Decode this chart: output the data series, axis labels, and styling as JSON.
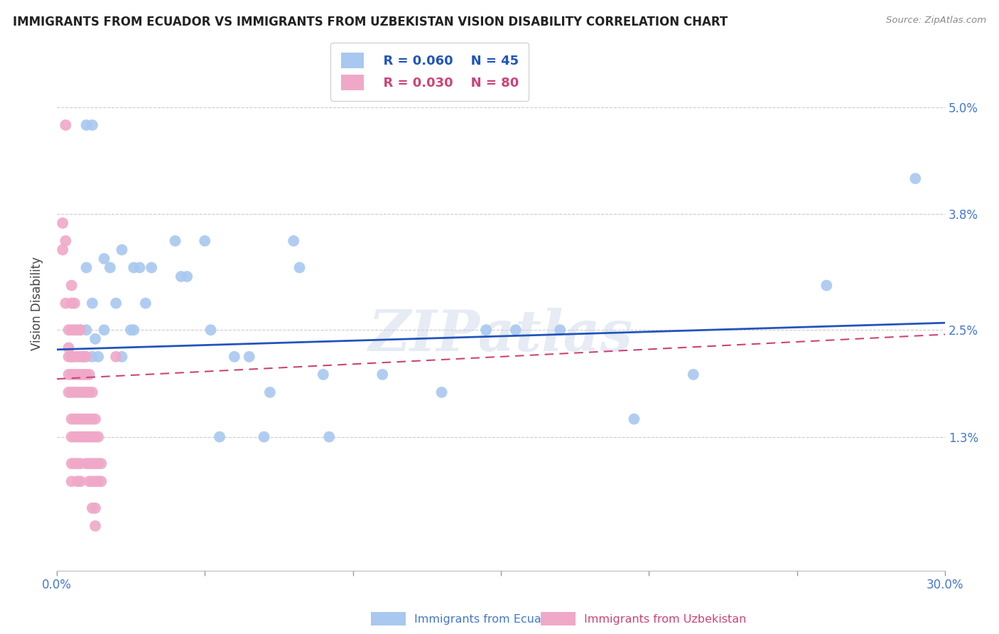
{
  "title": "IMMIGRANTS FROM ECUADOR VS IMMIGRANTS FROM UZBEKISTAN VISION DISABILITY CORRELATION CHART",
  "source": "Source: ZipAtlas.com",
  "ylabel": "Vision Disability",
  "ytick_labels": [
    "5.0%",
    "3.8%",
    "2.5%",
    "1.3%"
  ],
  "ytick_values": [
    0.05,
    0.038,
    0.025,
    0.013
  ],
  "xlim": [
    0.0,
    0.3
  ],
  "ylim": [
    -0.002,
    0.058
  ],
  "ecuador_R": 0.06,
  "ecuador_N": 45,
  "uzbekistan_R": 0.03,
  "uzbekistan_N": 80,
  "ecuador_color": "#a8c8f0",
  "uzbekistan_color": "#f0a8c8",
  "ecuador_line_color": "#2255bb",
  "uzbekistan_line_color": "#cc4477",
  "watermark": "ZIPatlas",
  "ecuador_points": [
    [
      0.008,
      0.025
    ],
    [
      0.009,
      0.022
    ],
    [
      0.01,
      0.048
    ],
    [
      0.012,
      0.048
    ],
    [
      0.01,
      0.032
    ],
    [
      0.01,
      0.025
    ],
    [
      0.012,
      0.028
    ],
    [
      0.012,
      0.022
    ],
    [
      0.013,
      0.024
    ],
    [
      0.014,
      0.022
    ],
    [
      0.016,
      0.033
    ],
    [
      0.016,
      0.025
    ],
    [
      0.018,
      0.032
    ],
    [
      0.02,
      0.028
    ],
    [
      0.022,
      0.022
    ],
    [
      0.022,
      0.034
    ],
    [
      0.025,
      0.025
    ],
    [
      0.026,
      0.032
    ],
    [
      0.026,
      0.025
    ],
    [
      0.028,
      0.032
    ],
    [
      0.03,
      0.028
    ],
    [
      0.032,
      0.032
    ],
    [
      0.04,
      0.035
    ],
    [
      0.042,
      0.031
    ],
    [
      0.044,
      0.031
    ],
    [
      0.05,
      0.035
    ],
    [
      0.052,
      0.025
    ],
    [
      0.055,
      0.013
    ],
    [
      0.06,
      0.022
    ],
    [
      0.065,
      0.022
    ],
    [
      0.07,
      0.013
    ],
    [
      0.072,
      0.018
    ],
    [
      0.08,
      0.035
    ],
    [
      0.082,
      0.032
    ],
    [
      0.09,
      0.02
    ],
    [
      0.092,
      0.013
    ],
    [
      0.11,
      0.02
    ],
    [
      0.13,
      0.018
    ],
    [
      0.145,
      0.025
    ],
    [
      0.155,
      0.025
    ],
    [
      0.17,
      0.025
    ],
    [
      0.195,
      0.015
    ],
    [
      0.215,
      0.02
    ],
    [
      0.26,
      0.03
    ],
    [
      0.29,
      0.042
    ]
  ],
  "uzbekistan_points": [
    [
      0.002,
      0.037
    ],
    [
      0.002,
      0.034
    ],
    [
      0.003,
      0.048
    ],
    [
      0.003,
      0.028
    ],
    [
      0.003,
      0.035
    ],
    [
      0.004,
      0.022
    ],
    [
      0.004,
      0.02
    ],
    [
      0.004,
      0.018
    ],
    [
      0.004,
      0.025
    ],
    [
      0.004,
      0.023
    ],
    [
      0.005,
      0.03
    ],
    [
      0.005,
      0.028
    ],
    [
      0.005,
      0.025
    ],
    [
      0.005,
      0.022
    ],
    [
      0.005,
      0.02
    ],
    [
      0.005,
      0.018
    ],
    [
      0.005,
      0.015
    ],
    [
      0.005,
      0.013
    ],
    [
      0.005,
      0.022
    ],
    [
      0.005,
      0.01
    ],
    [
      0.005,
      0.008
    ],
    [
      0.006,
      0.028
    ],
    [
      0.006,
      0.025
    ],
    [
      0.006,
      0.022
    ],
    [
      0.006,
      0.02
    ],
    [
      0.006,
      0.018
    ],
    [
      0.006,
      0.015
    ],
    [
      0.006,
      0.013
    ],
    [
      0.006,
      0.01
    ],
    [
      0.007,
      0.025
    ],
    [
      0.007,
      0.022
    ],
    [
      0.007,
      0.02
    ],
    [
      0.007,
      0.018
    ],
    [
      0.007,
      0.015
    ],
    [
      0.007,
      0.013
    ],
    [
      0.007,
      0.01
    ],
    [
      0.007,
      0.008
    ],
    [
      0.008,
      0.025
    ],
    [
      0.008,
      0.022
    ],
    [
      0.008,
      0.02
    ],
    [
      0.008,
      0.018
    ],
    [
      0.008,
      0.015
    ],
    [
      0.008,
      0.013
    ],
    [
      0.008,
      0.01
    ],
    [
      0.008,
      0.008
    ],
    [
      0.009,
      0.022
    ],
    [
      0.009,
      0.02
    ],
    [
      0.009,
      0.018
    ],
    [
      0.009,
      0.015
    ],
    [
      0.009,
      0.013
    ],
    [
      0.01,
      0.022
    ],
    [
      0.01,
      0.02
    ],
    [
      0.01,
      0.018
    ],
    [
      0.01,
      0.015
    ],
    [
      0.01,
      0.013
    ],
    [
      0.01,
      0.01
    ],
    [
      0.011,
      0.02
    ],
    [
      0.011,
      0.018
    ],
    [
      0.011,
      0.015
    ],
    [
      0.011,
      0.013
    ],
    [
      0.011,
      0.01
    ],
    [
      0.011,
      0.008
    ],
    [
      0.012,
      0.018
    ],
    [
      0.012,
      0.015
    ],
    [
      0.012,
      0.013
    ],
    [
      0.012,
      0.01
    ],
    [
      0.012,
      0.008
    ],
    [
      0.012,
      0.005
    ],
    [
      0.013,
      0.015
    ],
    [
      0.013,
      0.013
    ],
    [
      0.013,
      0.01
    ],
    [
      0.013,
      0.008
    ],
    [
      0.013,
      0.005
    ],
    [
      0.013,
      0.003
    ],
    [
      0.014,
      0.013
    ],
    [
      0.014,
      0.01
    ],
    [
      0.014,
      0.008
    ],
    [
      0.015,
      0.01
    ],
    [
      0.015,
      0.008
    ],
    [
      0.02,
      0.022
    ]
  ]
}
